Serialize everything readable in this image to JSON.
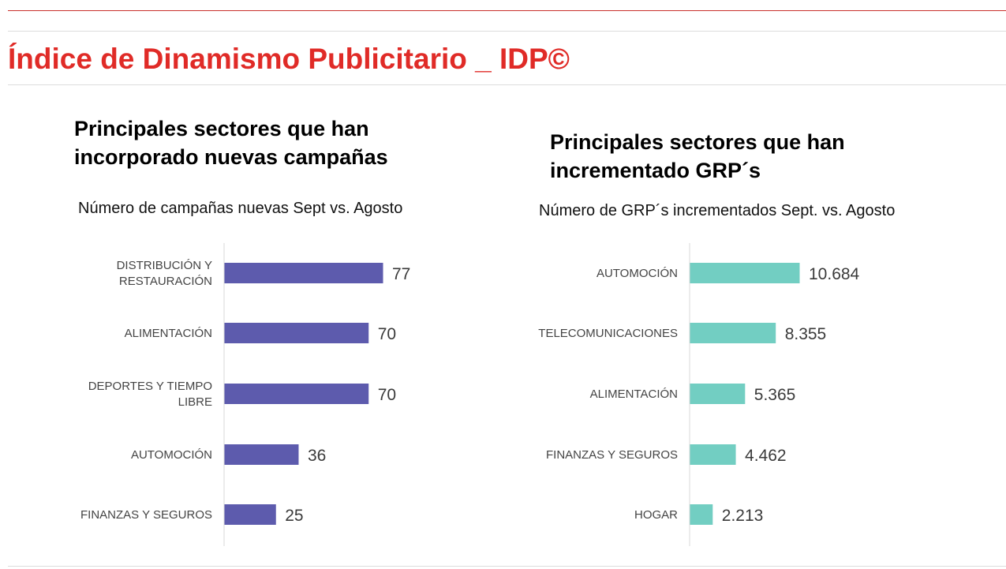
{
  "header": {
    "title": "Índice de Dinamismo Publicitario _ IDP©",
    "accent_color": "#e02b27"
  },
  "chart_data": [
    {
      "type": "bar",
      "orientation": "horizontal",
      "title": "Principales sectores que han incorporado nuevas campañas",
      "subtitle": "Número de campañas nuevas Sept vs. Agosto",
      "categories": [
        [
          "DISTRIBUCIÓN Y",
          "RESTAURACIÓN"
        ],
        [
          "ALIMENTACIÓN"
        ],
        [
          "DEPORTES Y TIEMPO",
          "LIBRE"
        ],
        [
          "AUTOMOCIÓN"
        ],
        [
          "FINANZAS Y SEGUROS"
        ]
      ],
      "values": [
        77,
        70,
        70,
        36,
        25
      ],
      "labels": [
        "77",
        "70",
        "70",
        "36",
        "25"
      ],
      "color": "#5d5bad",
      "xlim": [
        0,
        77
      ],
      "grid": false
    },
    {
      "type": "bar",
      "orientation": "horizontal",
      "title": "Principales sectores que han incrementado GRP´s",
      "subtitle": "Número de GRP´s incrementados Sept. vs. Agosto",
      "categories": [
        [
          "AUTOMOCIÓN"
        ],
        [
          "TELECOMUNICACIONES"
        ],
        [
          "ALIMENTACIÓN"
        ],
        [
          "FINANZAS Y SEGUROS"
        ],
        [
          "HOGAR"
        ]
      ],
      "values": [
        10684,
        8355,
        5365,
        4462,
        2213
      ],
      "labels": [
        "10.684",
        "8.355",
        "5.365",
        "4.462",
        "2.213"
      ],
      "color": "#72cec2",
      "xlim": [
        0,
        10684
      ],
      "grid": false
    }
  ]
}
